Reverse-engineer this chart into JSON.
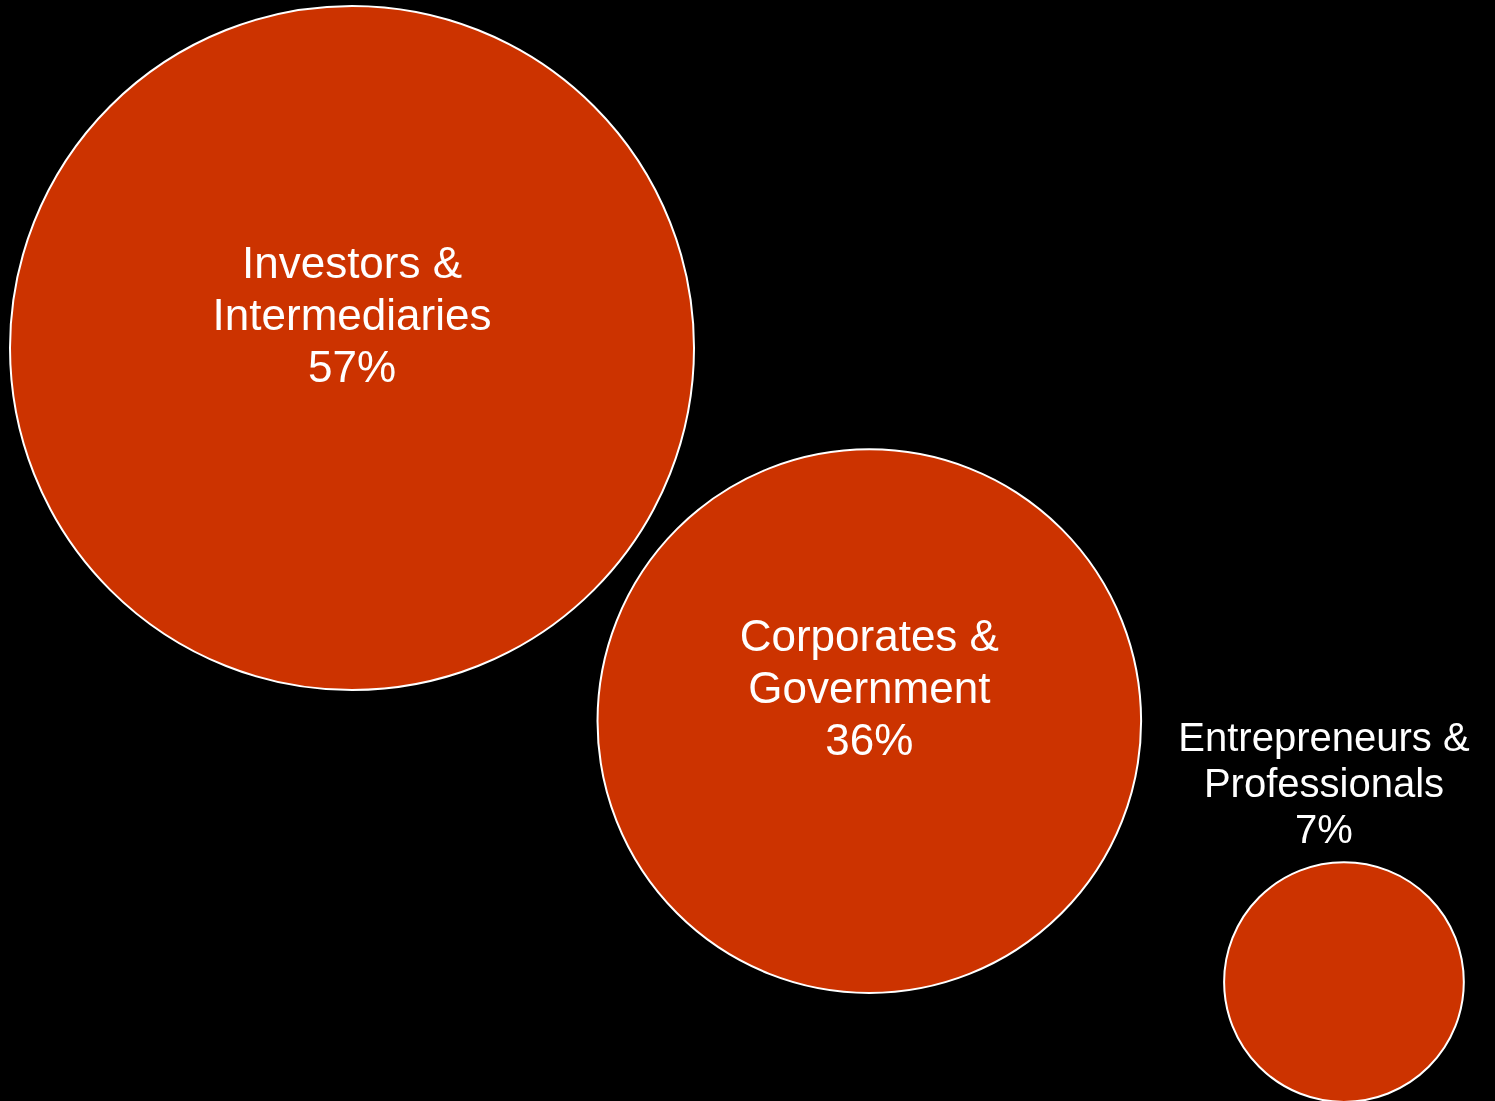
{
  "chart_data": {
    "type": "other",
    "categories": [
      "Investors & Intermediaries",
      "Corporates & Government",
      "Entrepreneurs & Professionals"
    ],
    "values": [
      57,
      36,
      7
    ],
    "value_labels": [
      "57%",
      "36%",
      "7%"
    ],
    "color": "#cc3300"
  }
}
